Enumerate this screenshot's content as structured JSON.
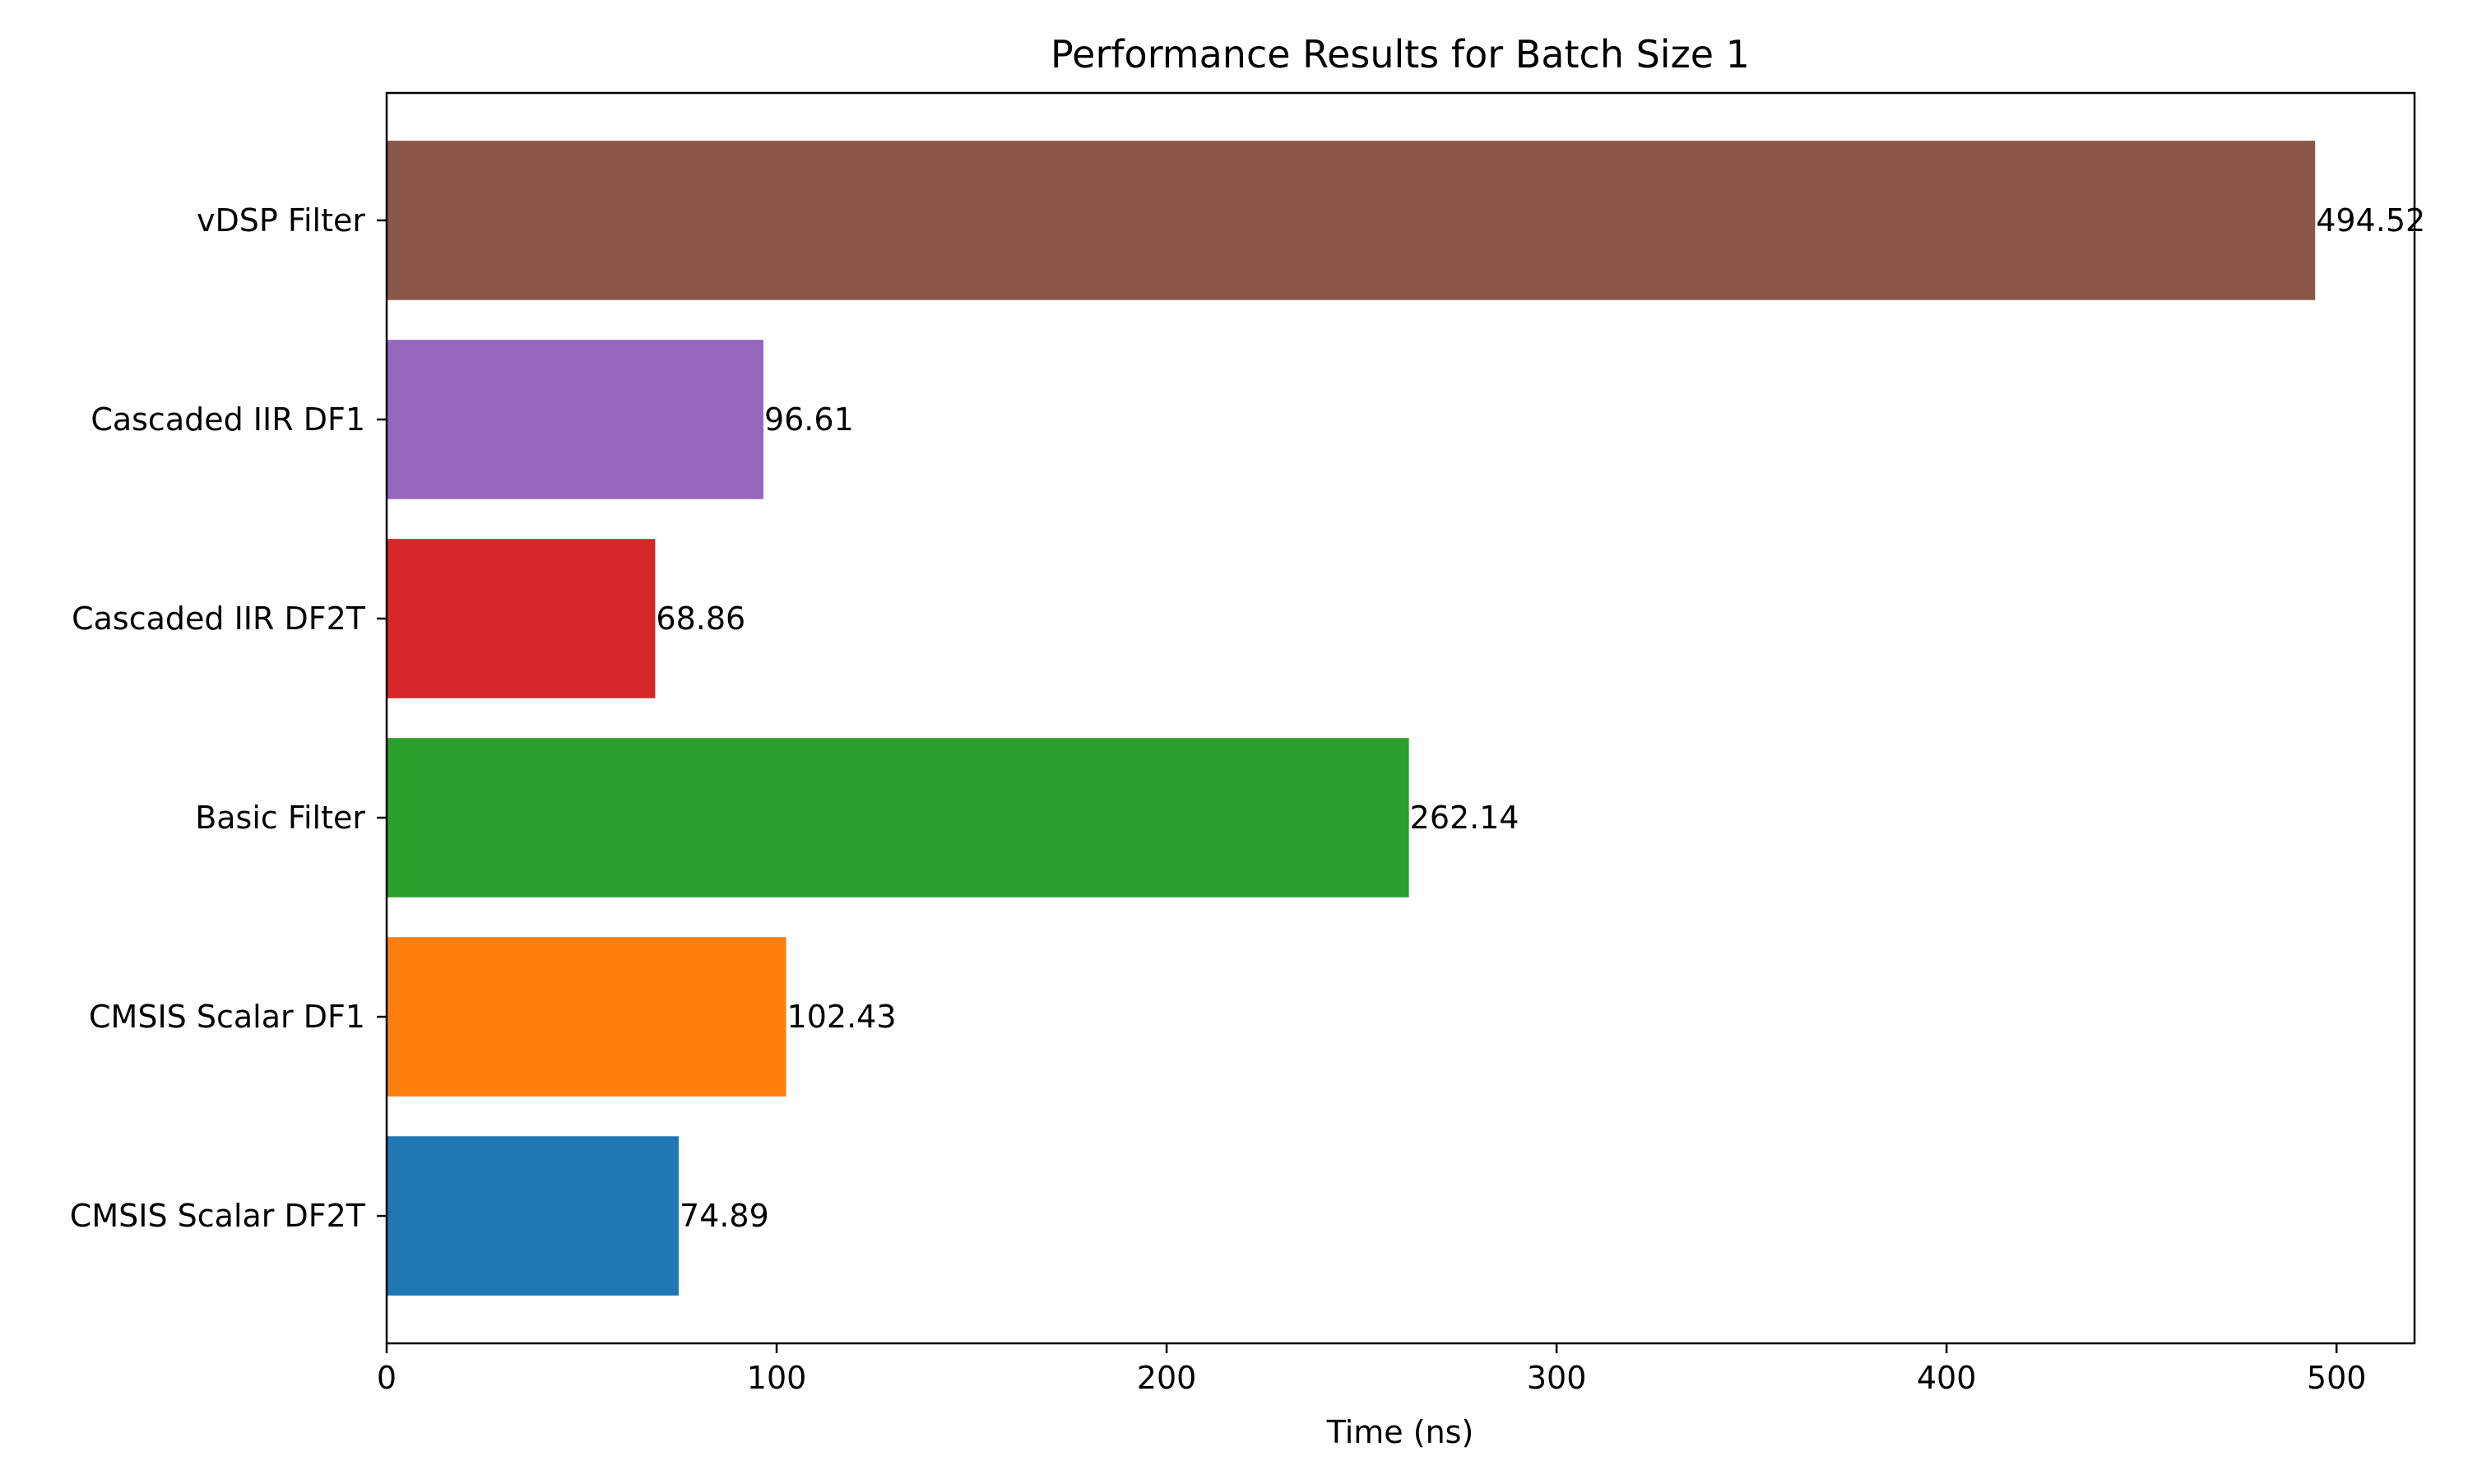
{
  "chart_data": {
    "type": "bar",
    "orientation": "horizontal",
    "title": "Performance Results for Batch Size 1",
    "xlabel": "Time (ns)",
    "ylabel": "",
    "xlim": [
      0,
      520
    ],
    "xticks": [
      0,
      100,
      200,
      300,
      400,
      500
    ],
    "grid": false,
    "categories": [
      "CMSIS Scalar DF2T",
      "CMSIS Scalar DF1",
      "Basic Filter",
      "Cascaded IIR DF2T",
      "Cascaded IIR DF1",
      "vDSP Filter"
    ],
    "values": [
      74.89,
      102.43,
      262.14,
      68.86,
      96.61,
      494.52
    ],
    "value_labels": [
      "74.89",
      "102.43",
      "262.14",
      "68.86",
      "96.61",
      "494.52"
    ],
    "colors": [
      "#1f77b4",
      "#ff7f0e",
      "#2ca02c",
      "#d62728",
      "#9467bd",
      "#8c564b"
    ]
  }
}
